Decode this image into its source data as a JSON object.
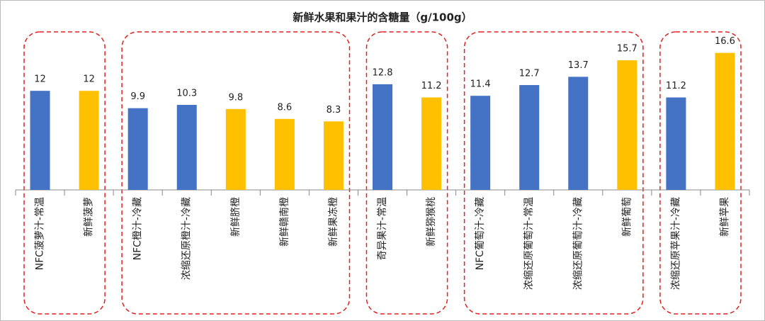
{
  "chart_data": {
    "type": "bar",
    "title": "新鲜水果和果汁的含糖量（g/100g）",
    "categories": [
      "NFC菠萝汁-常温",
      "新鲜菠萝",
      "NFC橙汁-冷藏",
      "浓缩还原橙汁-冷藏",
      "新鲜脐橙",
      "新鲜赣南橙",
      "新鲜果冻橙",
      "奇异果汁-常温",
      "新鲜猕猴桃",
      "NFC葡萄汁-冷藏",
      "浓缩还原葡萄汁-常温",
      "浓缩还原葡萄汁-冷藏",
      "新鲜葡萄",
      "浓缩还原苹果汁-冷藏",
      "新鲜苹果"
    ],
    "values": [
      12,
      12,
      9.9,
      10.3,
      9.8,
      8.6,
      8.3,
      12.8,
      11.2,
      11.4,
      12.7,
      13.7,
      15.7,
      11.2,
      16.6
    ],
    "colors": [
      "#4472c4",
      "#ffc000",
      "#4472c4",
      "#4472c4",
      "#ffc000",
      "#ffc000",
      "#ffc000",
      "#4472c4",
      "#ffc000",
      "#4472c4",
      "#4472c4",
      "#4472c4",
      "#ffc000",
      "#4472c4",
      "#ffc000"
    ],
    "ylim": [
      0,
      20
    ]
  }
}
